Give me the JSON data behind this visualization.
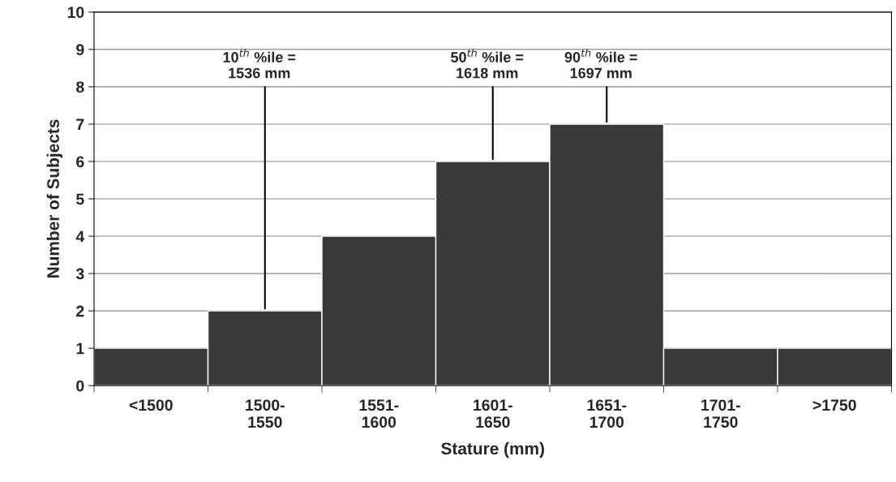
{
  "chart_data": {
    "type": "bar",
    "xlabel": "Stature (mm)",
    "ylabel": "Number of Subjects",
    "categories": [
      "<1500",
      "1500-\n1550",
      "1551-\n1600",
      "1601-\n1650",
      "1651-\n1700",
      "1701-\n1750",
      ">1750"
    ],
    "values": [
      1,
      2,
      4,
      6,
      7,
      1,
      1
    ],
    "color": "#3a3a3a",
    "ylim": [
      0,
      10
    ],
    "yticks": [
      0,
      1,
      2,
      3,
      4,
      5,
      6,
      7,
      8,
      9,
      10
    ],
    "grid": "y",
    "annotations": [
      {
        "text": "10$^{th}$ %ile =\n1536 mm",
        "x": "1500-\n1550",
        "y": 2
      },
      {
        "text": "50$^{th}$ %ile =\n1618 mm",
        "x": "1601-\n1650",
        "y": 6
      },
      {
        "text": "90$^{th}$ %ile =\n1697 mm",
        "x": "1651-\n1700",
        "y": 7
      }
    ]
  }
}
